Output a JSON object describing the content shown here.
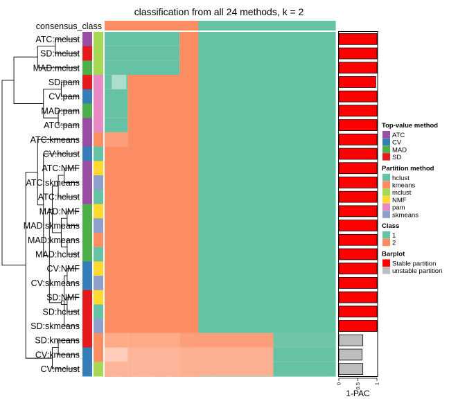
{
  "chart_data": {
    "type": "heatmap",
    "title": "classification from all 24 methods, k = 2",
    "top_annotation_label": "consensus_class",
    "consensus_class": [
      "2",
      "2",
      "2",
      "2",
      "2",
      "2",
      "2",
      "2",
      "2",
      "2",
      "2",
      "2",
      "2",
      "2",
      "2",
      "2",
      "2",
      "2",
      "2",
      "2",
      "2",
      "2",
      "2",
      "2",
      "2",
      "2",
      "2",
      "2",
      "2",
      "2",
      "2",
      "2",
      "2",
      "2",
      "2",
      "2",
      "2",
      "2",
      "2",
      "2",
      "2",
      "2",
      "2",
      "2",
      "2",
      "2",
      "2",
      "2",
      "2",
      "2",
      "2",
      "2",
      "2",
      "2",
      "2",
      "2",
      "2",
      "2",
      "2",
      "2",
      "2",
      "2",
      "2",
      "2",
      "2",
      "1",
      "1",
      "1",
      "1",
      "1",
      "1",
      "1",
      "1",
      "1",
      "1",
      "1",
      "1",
      "1",
      "1",
      "1",
      "1",
      "1",
      "1",
      "1",
      "1",
      "1",
      "1",
      "1",
      "1",
      "1",
      "1",
      "1",
      "1",
      "1",
      "1",
      "1",
      "1",
      "1",
      "1",
      "1",
      "1",
      "1",
      "1",
      "1",
      "1",
      "1",
      "1",
      "1",
      "1",
      "1",
      "1",
      "1",
      "1",
      "1",
      "1",
      "1",
      "1",
      "1",
      "1",
      "1",
      "1",
      "1",
      "1",
      "1",
      "1",
      "1",
      "1",
      "1",
      "1",
      "1",
      "1",
      "1",
      "1",
      "1",
      "1",
      "1",
      "1",
      "1",
      "1",
      "1",
      "1",
      "1",
      "1",
      "1",
      "1",
      "1",
      "1",
      "1",
      "1",
      "1",
      "1",
      "1",
      "1",
      "1",
      "1",
      "1",
      "1",
      "1",
      "1",
      "1"
    ],
    "methods": [
      "ATC:mclust",
      "SD:mclust",
      "MAD:mclust",
      "SD:pam",
      "CV:pam",
      "MAD:pam",
      "ATC:pam",
      "ATC:kmeans",
      "CV:hclust",
      "ATC:NMF",
      "ATC:skmeans",
      "ATC:hclust",
      "MAD:NMF",
      "MAD:skmeans",
      "MAD:kmeans",
      "MAD:hclust",
      "CV:NMF",
      "CV:skmeans",
      "SD:NMF",
      "SD:hclust",
      "SD:skmeans",
      "SD:kmeans",
      "CV:kmeans",
      "CV:mclust"
    ],
    "top_value_method": [
      "ATC",
      "SD",
      "MAD",
      "SD",
      "CV",
      "MAD",
      "ATC",
      "ATC",
      "CV",
      "ATC",
      "ATC",
      "ATC",
      "MAD",
      "MAD",
      "MAD",
      "MAD",
      "CV",
      "CV",
      "SD",
      "SD",
      "SD",
      "SD",
      "CV",
      "CV"
    ],
    "partition_method": [
      "mclust",
      "mclust",
      "mclust",
      "pam",
      "pam",
      "pam",
      "pam",
      "kmeans",
      "hclust",
      "NMF",
      "skmeans",
      "hclust",
      "NMF",
      "skmeans",
      "kmeans",
      "hclust",
      "NMF",
      "skmeans",
      "NMF",
      "hclust",
      "skmeans",
      "kmeans",
      "kmeans",
      "mclust"
    ],
    "one_minus_pac": [
      1,
      1,
      1,
      0.97,
      1,
      1,
      1,
      1,
      1,
      1,
      1,
      1,
      1,
      1,
      1,
      1,
      1,
      1,
      1,
      1,
      1,
      0.63,
      0.61,
      0.63
    ],
    "stable": [
      true,
      true,
      true,
      true,
      true,
      true,
      true,
      true,
      true,
      true,
      true,
      true,
      true,
      true,
      true,
      true,
      true,
      true,
      true,
      true,
      true,
      false,
      false,
      false
    ],
    "barplot_axis": {
      "label": "1-PAC",
      "ticks": [
        "0",
        "0.5",
        "1"
      ],
      "tick_values": [
        0,
        0.5,
        1
      ]
    },
    "dendrogram": [
      [
        0,
        1,
        0.4
      ],
      [
        24,
        2,
        0.7
      ],
      [
        3,
        4,
        0.3
      ],
      [
        5,
        6,
        0.35
      ],
      [
        26,
        27,
        0.6
      ],
      [
        25,
        28,
        1.1
      ],
      [
        9,
        10,
        0.25
      ],
      [
        11,
        30,
        0.35
      ],
      [
        12,
        13,
        0.2
      ],
      [
        14,
        15,
        0.2
      ],
      [
        32,
        33,
        0.3
      ],
      [
        31,
        34,
        0.45
      ],
      [
        16,
        17,
        0.2
      ],
      [
        18,
        19,
        0.2
      ],
      [
        20,
        36,
        0.25
      ],
      [
        37,
        38,
        0.3
      ],
      [
        35,
        39,
        0.5
      ],
      [
        8,
        40,
        0.6
      ],
      [
        7,
        41,
        0.7
      ],
      [
        21,
        22,
        0.35
      ],
      [
        23,
        43,
        0.45
      ],
      [
        42,
        44,
        0.9
      ],
      [
        29,
        45,
        1.3
      ]
    ],
    "palette": {
      "class_1": "#66C2A5",
      "class_2": "#FC8D62",
      "top_value": {
        "ATC": "#984EA3",
        "CV": "#377EB8",
        "MAD": "#4DAF4A",
        "SD": "#E41A1C"
      },
      "partition": {
        "hclust": "#66C2A5",
        "kmeans": "#FC8D62",
        "mclust": "#A6D854",
        "NMF": "#FFD92F",
        "pam": "#E78AC3",
        "skmeans": "#8DA0CB"
      },
      "stable_partition": "#FF0000",
      "unstable_partition": "#BEBEBE"
    }
  },
  "legends": [
    {
      "title": "Top-value method",
      "items": [
        {
          "label": "ATC",
          "color": "#984EA3"
        },
        {
          "label": "CV",
          "color": "#377EB8"
        },
        {
          "label": "MAD",
          "color": "#4DAF4A"
        },
        {
          "label": "SD",
          "color": "#E41A1C"
        }
      ]
    },
    {
      "title": "Partition method",
      "items": [
        {
          "label": "hclust",
          "color": "#66C2A5"
        },
        {
          "label": "kmeans",
          "color": "#FC8D62"
        },
        {
          "label": "mclust",
          "color": "#A6D854"
        },
        {
          "label": "NMF",
          "color": "#FFD92F"
        },
        {
          "label": "pam",
          "color": "#E78AC3"
        },
        {
          "label": "skmeans",
          "color": "#8DA0CB"
        }
      ]
    },
    {
      "title": "Class",
      "items": [
        {
          "label": "1",
          "color": "#66C2A5"
        },
        {
          "label": "2",
          "color": "#FC8D62"
        }
      ]
    },
    {
      "title": "Barplot",
      "items": [
        {
          "label": "Stable partition",
          "color": "#FF0000"
        },
        {
          "label": "unstable partition",
          "color": "#BEBEBE"
        }
      ]
    }
  ]
}
